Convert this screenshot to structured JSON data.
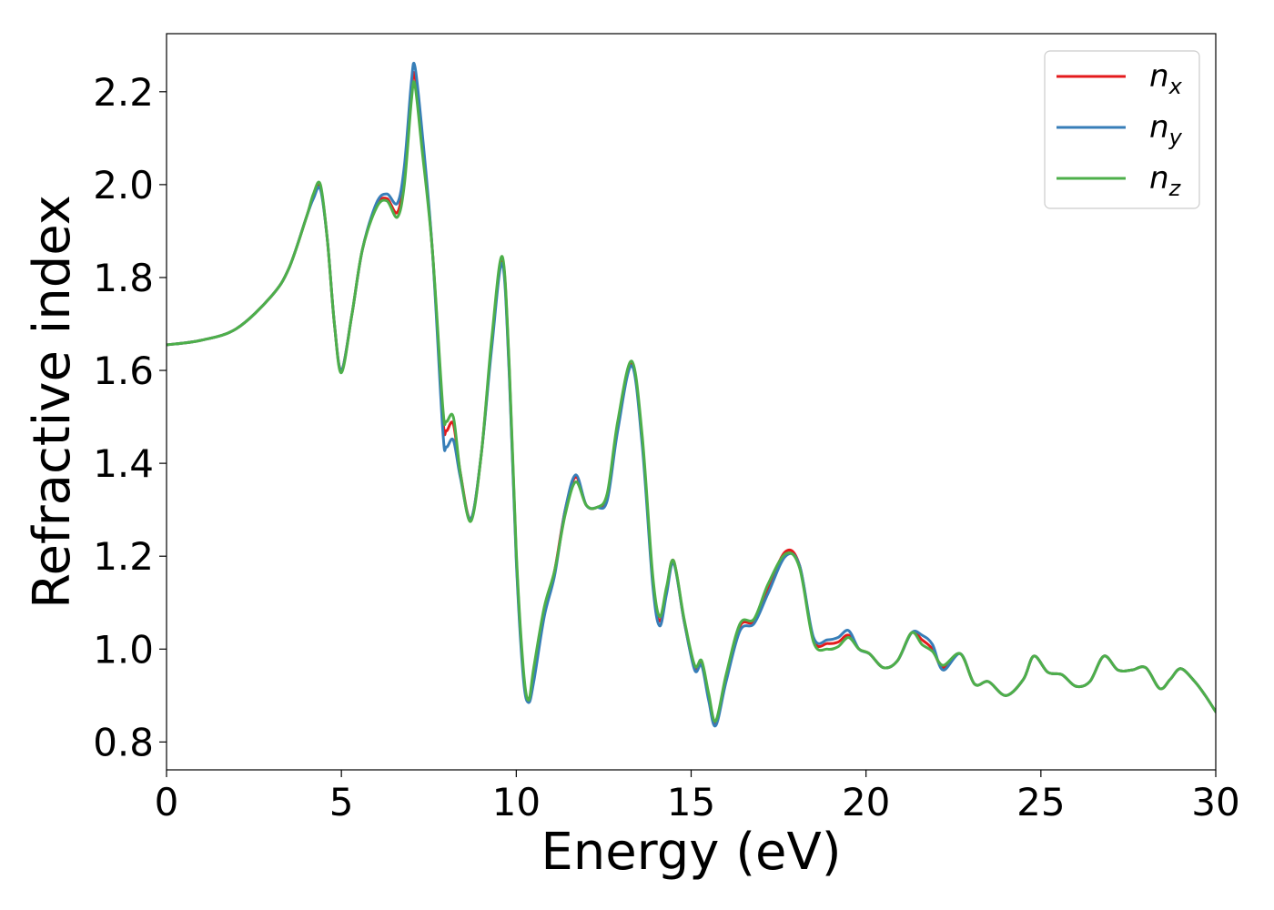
{
  "chart_data": {
    "type": "line",
    "xlabel": "Energy (eV)",
    "ylabel": "Refractive index",
    "xlim": [
      0,
      30
    ],
    "ylim": [
      0.74,
      2.325
    ],
    "xticks": [
      0,
      5,
      10,
      15,
      20,
      25,
      30
    ],
    "xtick_labels": [
      "0",
      "5",
      "10",
      "15",
      "20",
      "25",
      "30"
    ],
    "yticks": [
      0.8,
      1.0,
      1.2,
      1.4,
      1.6,
      1.8,
      2.0,
      2.2
    ],
    "ytick_labels": [
      "0.8",
      "1.0",
      "1.2",
      "1.4",
      "1.6",
      "1.8",
      "2.0",
      "2.2"
    ],
    "grid": false,
    "legend_position": "top-right",
    "series": [
      {
        "name": "n_x",
        "label_base": "n",
        "label_sub": "x",
        "color": "#e41a1c",
        "x": [
          0,
          1,
          2,
          3,
          3.5,
          4,
          4.2,
          4.4,
          4.6,
          4.8,
          5.0,
          5.3,
          5.6,
          6.0,
          6.3,
          6.6,
          6.8,
          7.0,
          7.1,
          7.3,
          7.6,
          7.9,
          8.0,
          8.2,
          8.4,
          8.7,
          9.0,
          9.3,
          9.6,
          9.8,
          10.0,
          10.2,
          10.35,
          10.5,
          10.8,
          11.1,
          11.4,
          11.7,
          12.0,
          12.3,
          12.6,
          12.9,
          13.3,
          13.6,
          13.9,
          14.1,
          14.3,
          14.5,
          14.8,
          15.1,
          15.3,
          15.5,
          15.7,
          16.0,
          16.4,
          16.8,
          17.2,
          17.7,
          18.1,
          18.5,
          18.9,
          19.2,
          19.5,
          19.8,
          20.1,
          20.5,
          20.9,
          21.3,
          21.6,
          21.9,
          22.2,
          22.7,
          23.1,
          23.5,
          24.0,
          24.5,
          24.8,
          25.2,
          25.6,
          26.0,
          26.4,
          26.8,
          27.2,
          27.6,
          28.0,
          28.4,
          28.7,
          29.0,
          29.4,
          29.7,
          30.0
        ],
        "y": [
          1.655,
          1.665,
          1.69,
          1.76,
          1.82,
          1.93,
          1.975,
          1.995,
          1.88,
          1.7,
          1.6,
          1.72,
          1.86,
          1.955,
          1.97,
          1.94,
          2.02,
          2.2,
          2.235,
          2.1,
          1.86,
          1.5,
          1.47,
          1.485,
          1.38,
          1.28,
          1.42,
          1.66,
          1.84,
          1.6,
          1.2,
          0.95,
          0.888,
          0.95,
          1.08,
          1.17,
          1.3,
          1.37,
          1.31,
          1.305,
          1.33,
          1.48,
          1.615,
          1.45,
          1.15,
          1.06,
          1.13,
          1.19,
          1.06,
          0.96,
          0.97,
          0.9,
          0.84,
          0.94,
          1.05,
          1.06,
          1.13,
          1.21,
          1.18,
          1.02,
          1.012,
          1.015,
          1.03,
          1.0,
          0.99,
          0.96,
          0.975,
          1.035,
          1.02,
          1.0,
          0.96,
          0.99,
          0.925,
          0.93,
          0.9,
          0.935,
          0.985,
          0.95,
          0.945,
          0.92,
          0.93,
          0.985,
          0.955,
          0.955,
          0.96,
          0.915,
          0.935,
          0.958,
          0.93,
          0.9,
          0.865
        ]
      },
      {
        "name": "n_y",
        "label_base": "n",
        "label_sub": "y",
        "color": "#377eb8",
        "x": [
          0,
          1,
          2,
          3,
          3.5,
          4,
          4.2,
          4.4,
          4.6,
          4.8,
          5.0,
          5.3,
          5.6,
          6.0,
          6.3,
          6.6,
          6.8,
          7.0,
          7.1,
          7.3,
          7.6,
          7.9,
          8.0,
          8.2,
          8.4,
          8.7,
          9.0,
          9.3,
          9.6,
          9.8,
          10.0,
          10.2,
          10.35,
          10.5,
          10.8,
          11.1,
          11.4,
          11.7,
          12.0,
          12.3,
          12.6,
          12.9,
          13.3,
          13.6,
          13.9,
          14.1,
          14.3,
          14.5,
          14.8,
          15.1,
          15.3,
          15.5,
          15.7,
          16.0,
          16.4,
          16.8,
          17.2,
          17.7,
          18.1,
          18.5,
          18.9,
          19.2,
          19.5,
          19.8,
          20.1,
          20.5,
          20.9,
          21.3,
          21.6,
          21.9,
          22.2,
          22.7,
          23.1,
          23.5,
          24.0,
          24.5,
          24.8,
          25.2,
          25.6,
          26.0,
          26.4,
          26.8,
          27.2,
          27.6,
          28.0,
          28.4,
          28.7,
          29.0,
          29.4,
          29.7,
          30.0
        ],
        "y": [
          1.655,
          1.665,
          1.69,
          1.76,
          1.82,
          1.93,
          1.97,
          1.99,
          1.88,
          1.7,
          1.6,
          1.72,
          1.86,
          1.96,
          1.98,
          1.96,
          2.04,
          2.22,
          2.255,
          2.12,
          1.86,
          1.47,
          1.435,
          1.45,
          1.37,
          1.28,
          1.42,
          1.65,
          1.83,
          1.59,
          1.19,
          0.94,
          0.885,
          0.93,
          1.07,
          1.16,
          1.3,
          1.375,
          1.31,
          1.305,
          1.32,
          1.47,
          1.61,
          1.44,
          1.14,
          1.05,
          1.12,
          1.185,
          1.06,
          0.955,
          0.965,
          0.89,
          0.835,
          0.93,
          1.04,
          1.055,
          1.12,
          1.2,
          1.18,
          1.025,
          1.02,
          1.025,
          1.04,
          1.0,
          0.99,
          0.96,
          0.975,
          1.035,
          1.03,
          1.01,
          0.955,
          0.99,
          0.925,
          0.93,
          0.9,
          0.935,
          0.985,
          0.95,
          0.945,
          0.92,
          0.93,
          0.985,
          0.955,
          0.955,
          0.96,
          0.915,
          0.935,
          0.958,
          0.93,
          0.9,
          0.865
        ]
      },
      {
        "name": "n_z",
        "label_base": "n",
        "label_sub": "z",
        "color": "#4daf4a",
        "x": [
          0,
          1,
          2,
          3,
          3.5,
          4,
          4.2,
          4.4,
          4.6,
          4.8,
          5.0,
          5.3,
          5.6,
          6.0,
          6.3,
          6.6,
          6.8,
          7.0,
          7.1,
          7.3,
          7.6,
          7.9,
          8.0,
          8.2,
          8.4,
          8.7,
          9.0,
          9.3,
          9.6,
          9.8,
          10.0,
          10.2,
          10.35,
          10.5,
          10.8,
          11.1,
          11.4,
          11.7,
          12.0,
          12.3,
          12.6,
          12.9,
          13.3,
          13.6,
          13.9,
          14.1,
          14.3,
          14.5,
          14.8,
          15.1,
          15.3,
          15.5,
          15.7,
          16.0,
          16.4,
          16.8,
          17.2,
          17.7,
          18.1,
          18.5,
          18.9,
          19.2,
          19.5,
          19.8,
          20.1,
          20.5,
          20.9,
          21.3,
          21.6,
          21.9,
          22.2,
          22.7,
          23.1,
          23.5,
          24.0,
          24.5,
          24.8,
          25.2,
          25.6,
          26.0,
          26.4,
          26.8,
          27.2,
          27.6,
          28.0,
          28.4,
          28.7,
          29.0,
          29.4,
          29.7,
          30.0
        ],
        "y": [
          1.655,
          1.665,
          1.69,
          1.76,
          1.82,
          1.93,
          1.98,
          2.0,
          1.88,
          1.7,
          1.595,
          1.72,
          1.86,
          1.95,
          1.965,
          1.93,
          2.0,
          2.18,
          2.215,
          2.08,
          1.86,
          1.52,
          1.49,
          1.5,
          1.38,
          1.275,
          1.42,
          1.67,
          1.845,
          1.61,
          1.21,
          0.96,
          0.89,
          0.96,
          1.09,
          1.17,
          1.29,
          1.36,
          1.31,
          1.305,
          1.335,
          1.49,
          1.62,
          1.46,
          1.16,
          1.07,
          1.135,
          1.19,
          1.065,
          0.965,
          0.975,
          0.905,
          0.845,
          0.945,
          1.055,
          1.065,
          1.14,
          1.205,
          1.175,
          1.015,
          1.0,
          1.005,
          1.025,
          1.0,
          0.99,
          0.96,
          0.975,
          1.035,
          1.01,
          0.995,
          0.965,
          0.99,
          0.925,
          0.93,
          0.9,
          0.935,
          0.985,
          0.95,
          0.945,
          0.92,
          0.93,
          0.985,
          0.955,
          0.955,
          0.96,
          0.915,
          0.935,
          0.958,
          0.93,
          0.9,
          0.865
        ]
      }
    ]
  }
}
